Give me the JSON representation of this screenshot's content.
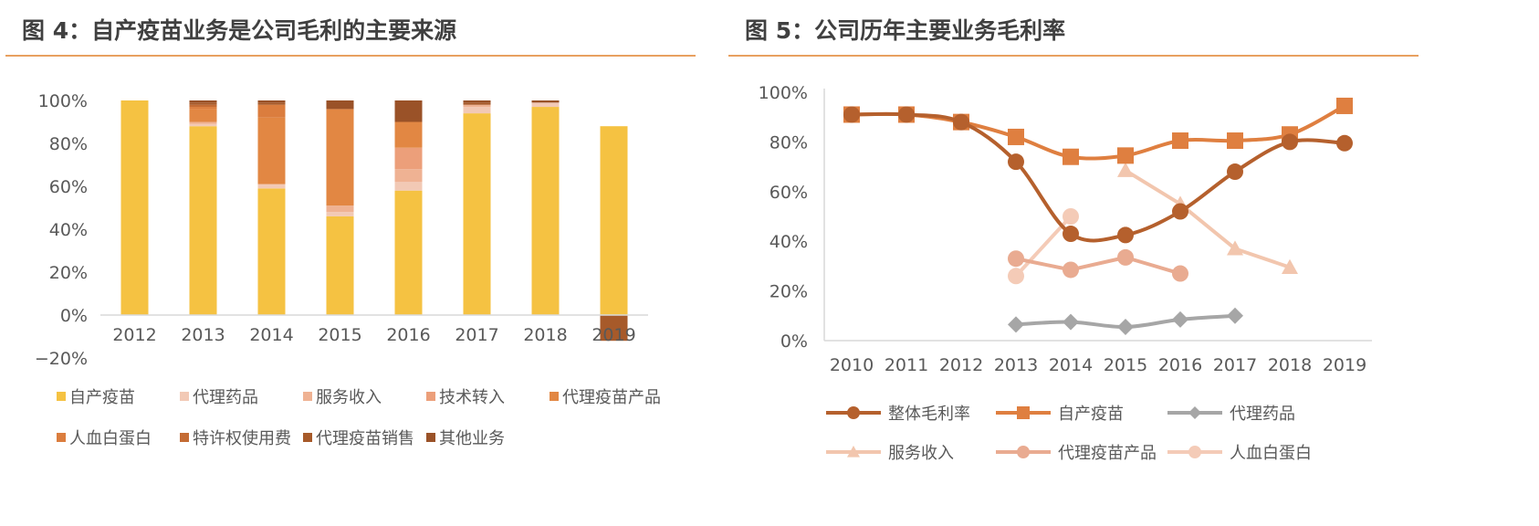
{
  "left": {
    "title": "图 4：自产疫苗业务是公司毛利的主要来源",
    "chart_data": {
      "type": "bar",
      "stacked": true,
      "categories": [
        "2012",
        "2013",
        "2014",
        "2015",
        "2016",
        "2017",
        "2018",
        "2019"
      ],
      "ylim": [
        -20,
        100
      ],
      "yticks": [
        "−20%",
        "0%",
        "20%",
        "40%",
        "60%",
        "80%",
        "100%"
      ],
      "ytick_values": [
        -20,
        0,
        20,
        40,
        60,
        80,
        100
      ],
      "series": [
        {
          "name": "自产疫苗",
          "color": "#F5C242",
          "values": [
            100,
            88,
            59,
            46,
            58,
            94,
            97,
            88
          ]
        },
        {
          "name": "代理药品",
          "color": "#F2C9B5",
          "values": [
            0,
            1,
            2,
            2,
            4,
            3,
            2,
            0
          ]
        },
        {
          "name": "服务收入",
          "color": "#EFB293",
          "values": [
            0,
            1,
            0,
            3,
            6,
            1,
            0,
            0
          ]
        },
        {
          "name": "技术转入",
          "color": "#EC9F7A",
          "values": [
            0,
            0,
            0,
            0,
            10,
            0,
            0,
            0
          ]
        },
        {
          "name": "代理疫苗产品",
          "color": "#E28743",
          "values": [
            0,
            6,
            31,
            45,
            12,
            0,
            0,
            0
          ]
        },
        {
          "name": "人血白蛋白",
          "color": "#DB7D3E",
          "values": [
            0,
            1,
            6,
            0,
            0,
            0,
            0,
            0
          ]
        },
        {
          "name": "特许权使用费",
          "color": "#C46B34",
          "values": [
            0,
            1,
            0,
            0,
            0,
            0,
            0,
            0
          ]
        },
        {
          "name": "代理疫苗销售",
          "color": "#A75A2A",
          "values": [
            0,
            1,
            1,
            0,
            0,
            1,
            0,
            -12
          ]
        },
        {
          "name": "其他业务",
          "color": "#9A5228",
          "values": [
            0,
            1,
            1,
            4,
            10,
            1,
            1,
            0
          ]
        }
      ]
    }
  },
  "right": {
    "title": "图 5：公司历年主要业务毛利率",
    "chart_data": {
      "type": "line",
      "x": [
        "2010",
        "2011",
        "2012",
        "2013",
        "2014",
        "2015",
        "2016",
        "2017",
        "2018",
        "2019"
      ],
      "ylim": [
        0,
        100
      ],
      "yticks": [
        "0%",
        "20%",
        "40%",
        "60%",
        "80%",
        "100%"
      ],
      "ytick_values": [
        0,
        20,
        40,
        60,
        80,
        100
      ],
      "series": [
        {
          "name": "整体毛利率",
          "color": "#B5602D",
          "marker": "circle",
          "smooth": true,
          "values": [
            91,
            91,
            88,
            72,
            43,
            42.5,
            52,
            68,
            80,
            79.5
          ]
        },
        {
          "name": "自产疫苗",
          "color": "#DF7F40",
          "marker": "square",
          "smooth": true,
          "values": [
            91,
            91,
            88,
            82,
            74,
            74.5,
            80.5,
            80.5,
            83,
            94.5
          ]
        },
        {
          "name": "代理药品",
          "color": "#A6A6A6",
          "marker": "diamond",
          "smooth": true,
          "values": [
            null,
            null,
            null,
            6.5,
            7.5,
            5.5,
            8.5,
            10,
            null,
            null
          ]
        },
        {
          "name": "服务收入",
          "color": "#F2C6AE",
          "marker": "triangle",
          "smooth": false,
          "values": [
            null,
            null,
            null,
            null,
            null,
            68.5,
            55,
            37,
            29.5,
            null
          ]
        },
        {
          "name": "代理疫苗产品",
          "color": "#E9AB91",
          "marker": "circle",
          "smooth": false,
          "values": [
            null,
            null,
            null,
            33,
            28.5,
            33.5,
            27,
            null,
            null,
            null
          ]
        },
        {
          "name": "人血白蛋白",
          "color": "#F4CBB7",
          "marker": "circle",
          "smooth": false,
          "values": [
            null,
            null,
            null,
            26,
            50,
            null,
            null,
            null,
            null,
            null
          ]
        }
      ]
    }
  }
}
